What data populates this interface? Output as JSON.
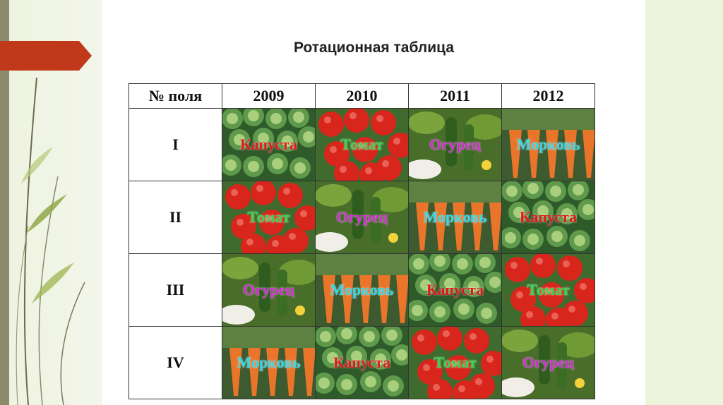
{
  "title": "Ротационная таблица",
  "table": {
    "headers": [
      "№ поля",
      "2009",
      "2010",
      "2011",
      "2012"
    ],
    "rows": [
      {
        "field": "I",
        "crops": [
          {
            "name": "Капуста",
            "type": "cabbage"
          },
          {
            "name": "Томат",
            "type": "tomato"
          },
          {
            "name": "Огурец",
            "type": "cucumber"
          },
          {
            "name": "Морковь",
            "type": "carrot"
          }
        ]
      },
      {
        "field": "II",
        "crops": [
          {
            "name": "Томат",
            "type": "tomato"
          },
          {
            "name": "Огурец",
            "type": "cucumber"
          },
          {
            "name": "Морковь",
            "type": "carrot"
          },
          {
            "name": "Капуста",
            "type": "cabbage"
          }
        ]
      },
      {
        "field": "III",
        "crops": [
          {
            "name": "Огурец",
            "type": "cucumber"
          },
          {
            "name": "Морковь",
            "type": "carrot"
          },
          {
            "name": "Капуста",
            "type": "cabbage"
          },
          {
            "name": "Томат",
            "type": "tomato"
          }
        ]
      },
      {
        "field": "IV",
        "crops": [
          {
            "name": "Морковь",
            "type": "carrot"
          },
          {
            "name": "Капуста",
            "type": "cabbage"
          },
          {
            "name": "Томат",
            "type": "tomato"
          },
          {
            "name": "Огурец",
            "type": "cucumber"
          }
        ]
      }
    ]
  },
  "colors": {
    "accent_arrow": "#c0391b",
    "cabbage_label": "#e01a1a",
    "tomato_label": "#37d54a",
    "cucumber_label": "#d52ad5",
    "carrot_label": "#35d7e6"
  }
}
